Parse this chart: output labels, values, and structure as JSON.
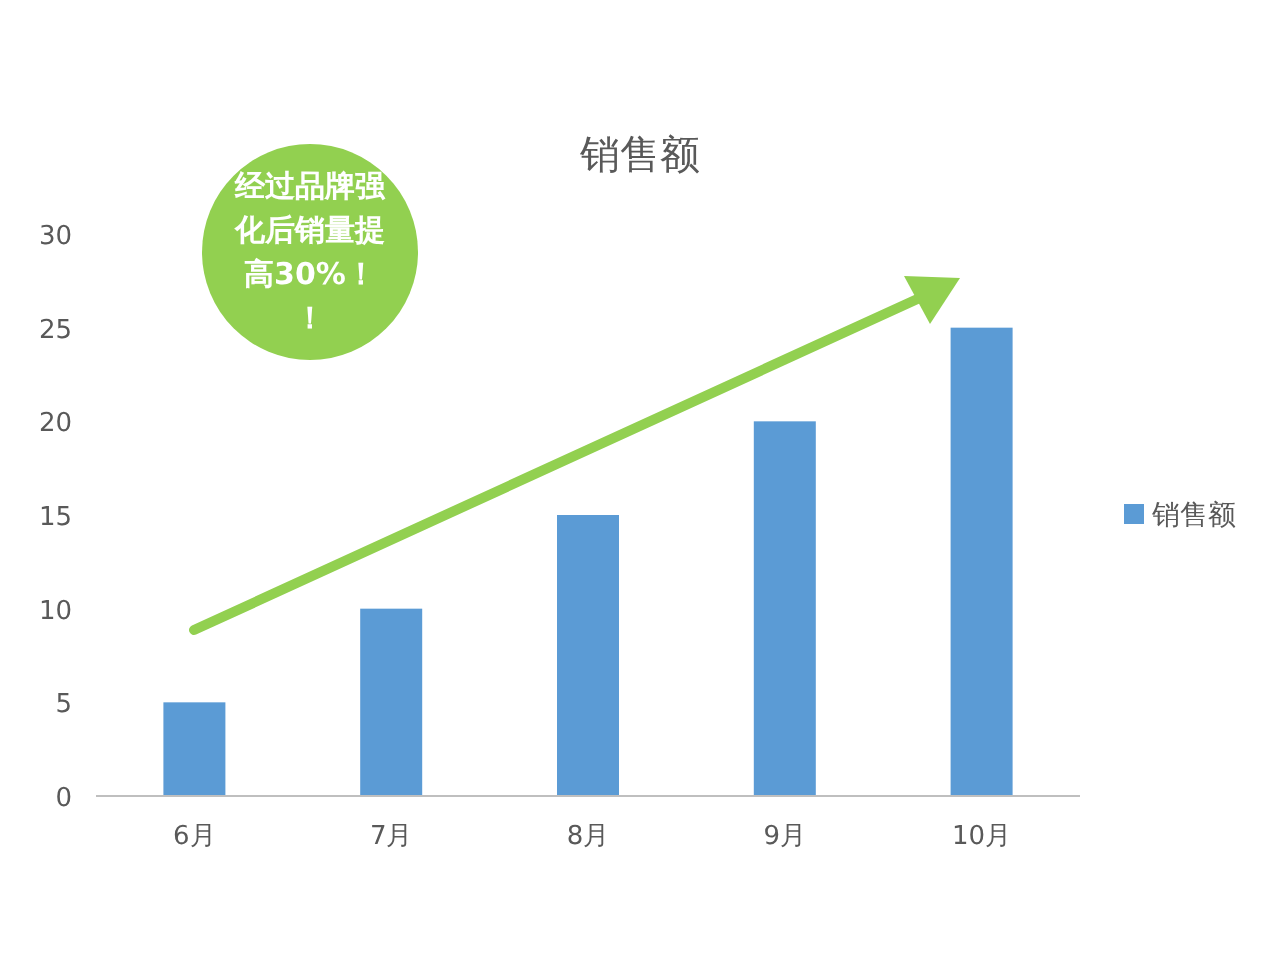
{
  "chart_data": {
    "type": "bar",
    "title": "销售额",
    "categories": [
      "6月",
      "7月",
      "8月",
      "9月",
      "10月"
    ],
    "series": [
      {
        "name": "销售额",
        "color": "#5b9bd5",
        "values": [
          5,
          10,
          15,
          20,
          25
        ]
      }
    ],
    "ylim": [
      0,
      30
    ],
    "yticks": [
      0,
      5,
      10,
      15,
      20,
      25,
      30
    ],
    "legend": "right",
    "annotations": [
      "经过品牌强化后销量提高30%！！"
    ]
  }
}
